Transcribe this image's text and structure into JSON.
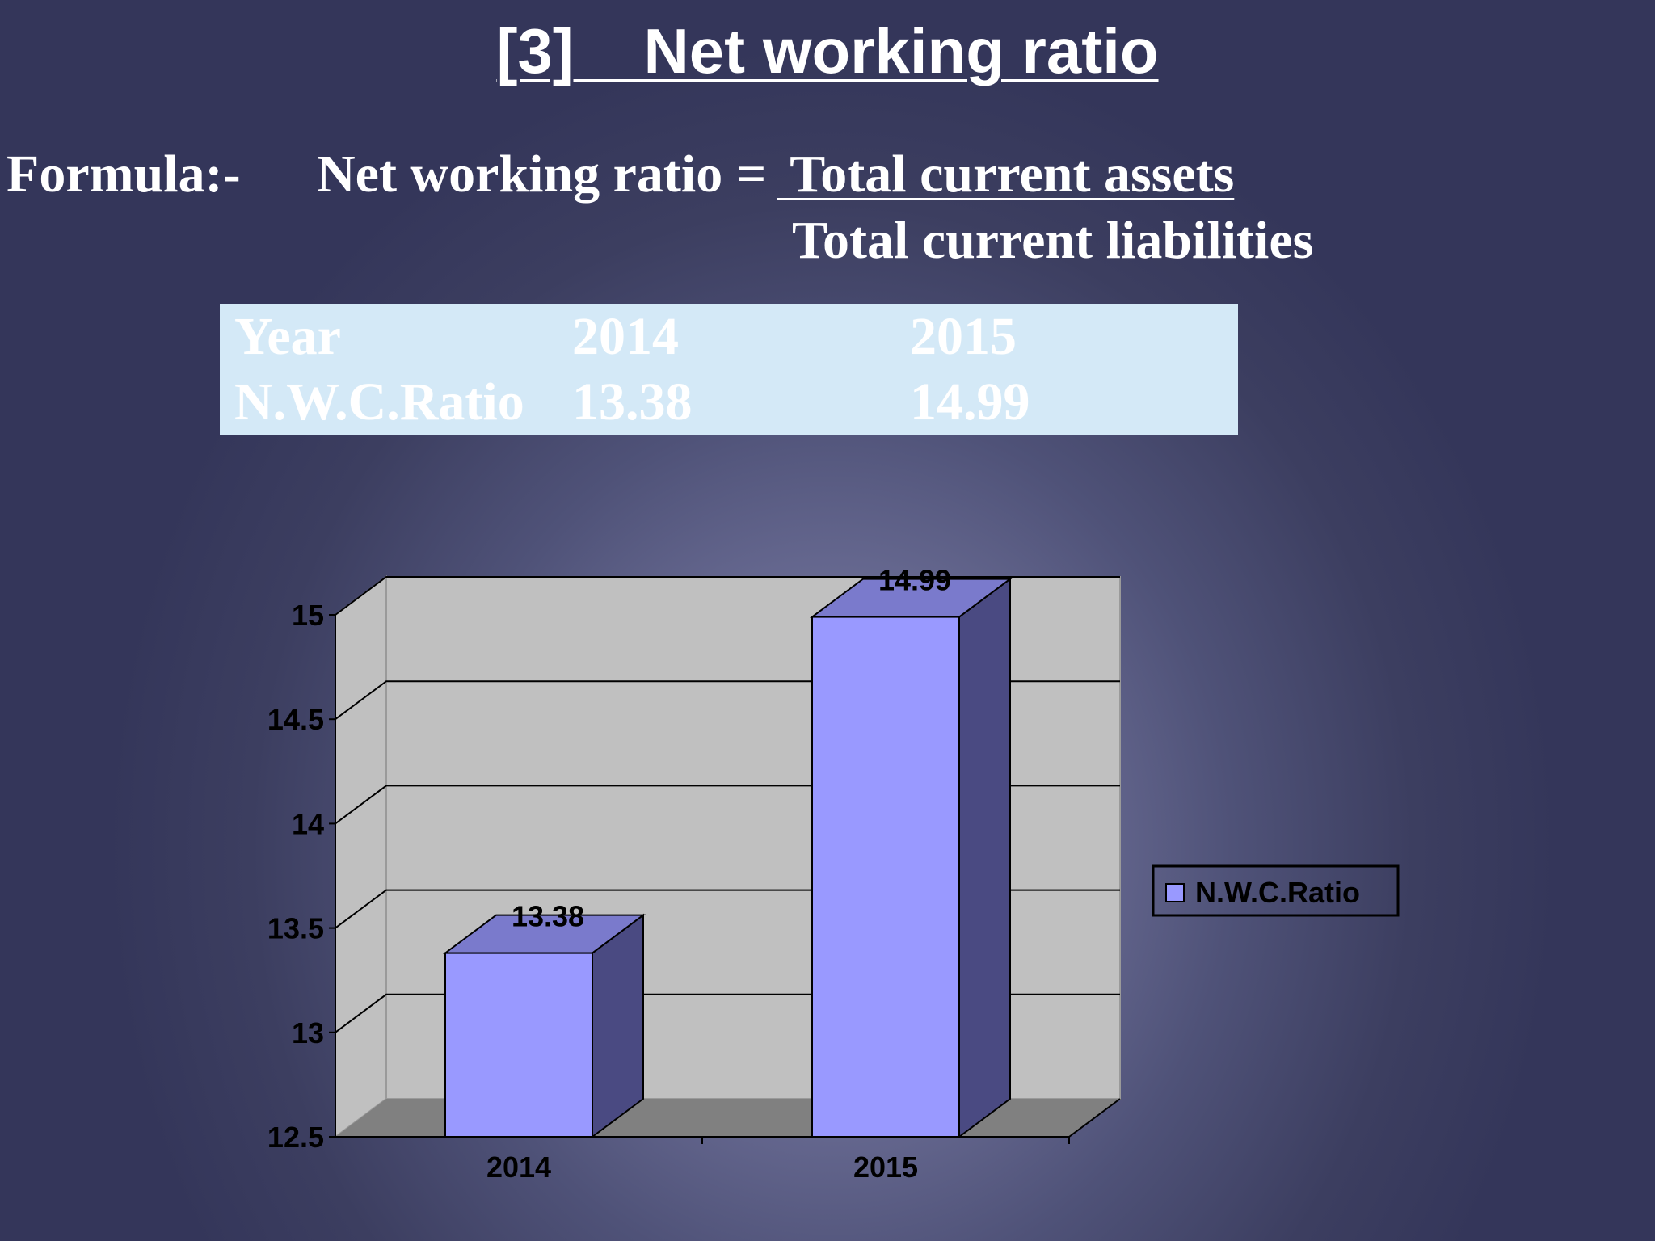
{
  "slide": {
    "title": "[3]    Net working ratio",
    "formula_label": "Formula:-",
    "formula_lhs": "Net working ratio =",
    "formula_numerator": " Total current assets",
    "formula_denominator": "Total current liabilities"
  },
  "table": {
    "rows": [
      [
        "Year",
        "2014",
        "2015"
      ],
      [
        "N.W.C.Ratio",
        "13.38",
        "14.99"
      ]
    ]
  },
  "colors": {
    "bar_front": "#9999ff",
    "bar_side": "#4a4a82",
    "bar_top": "#7a7acc",
    "wall": "#c0c0c0",
    "floor": "#808080",
    "table_bg": "#d4e9f7"
  },
  "chart_data": {
    "type": "bar",
    "categories": [
      "2014",
      "2015"
    ],
    "series": [
      {
        "name": "N.W.C.Ratio",
        "values": [
          13.38,
          14.99
        ]
      }
    ],
    "ylim": [
      12.5,
      15
    ],
    "yticks": [
      "12.5",
      "13",
      "13.5",
      "14",
      "14.5",
      "15"
    ],
    "data_labels": [
      "13.38",
      "14.99"
    ],
    "grid": true,
    "legend": "right",
    "three_d": true,
    "title": "",
    "xlabel": "",
    "ylabel": ""
  }
}
